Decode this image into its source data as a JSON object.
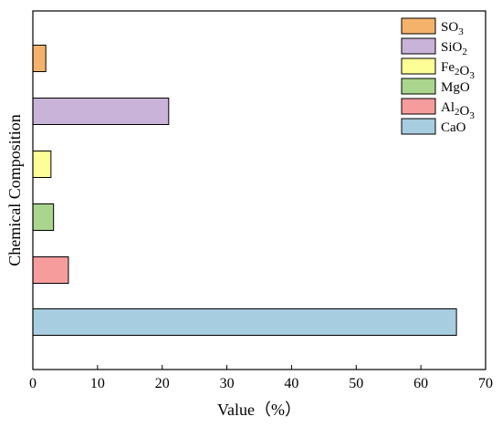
{
  "chart_data": {
    "type": "bar",
    "orientation": "horizontal",
    "title": "",
    "xlabel": "Value（%）",
    "ylabel": "Chemical Composition",
    "xlim": [
      0,
      70
    ],
    "xticks": [
      0,
      10,
      20,
      30,
      40,
      50,
      60,
      70
    ],
    "grid": false,
    "legend_position": "top-right",
    "series": [
      {
        "name": "SO",
        "sub": "3",
        "label_parts": [
          [
            "SO",
            ""
          ],
          [
            "3",
            "sub"
          ]
        ],
        "value": 2.0,
        "color": "#f5b26b"
      },
      {
        "name": "SiO",
        "sub": "2",
        "label_parts": [
          [
            "SiO",
            ""
          ],
          [
            "2",
            "sub"
          ]
        ],
        "value": 21.0,
        "color": "#c9b3d8"
      },
      {
        "name": "Fe2O3",
        "label_parts": [
          [
            "Fe",
            ""
          ],
          [
            "2",
            "sub"
          ],
          [
            "O",
            ""
          ],
          [
            "3",
            "sub"
          ]
        ],
        "value": 2.8,
        "color": "#fefe96"
      },
      {
        "name": "MgO",
        "label_parts": [
          [
            "MgO",
            ""
          ]
        ],
        "value": 3.2,
        "color": "#a9d58c"
      },
      {
        "name": "Al2O3",
        "label_parts": [
          [
            "Al",
            ""
          ],
          [
            "2",
            "sub"
          ],
          [
            "O",
            ""
          ],
          [
            "3",
            "sub"
          ]
        ],
        "value": 5.5,
        "color": "#f79c9c"
      },
      {
        "name": "CaO",
        "label_parts": [
          [
            "CaO",
            ""
          ]
        ],
        "value": 65.5,
        "color": "#a7cde0"
      }
    ]
  }
}
